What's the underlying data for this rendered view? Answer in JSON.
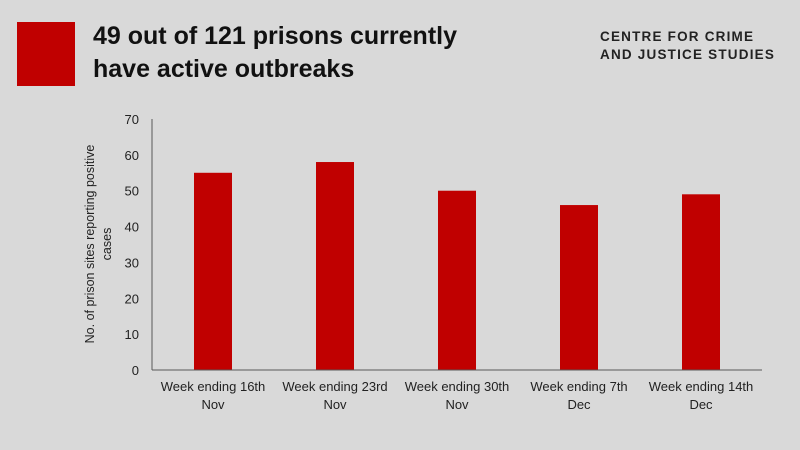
{
  "header": {
    "title_line1": "49 out of 121 prisons currently",
    "title_line2": "have active outbreaks",
    "brand_line1": "CENTRE FOR CRIME",
    "brand_line2": "AND JUSTICE STUDIES",
    "accent_color": "#c00000"
  },
  "chart_data": {
    "type": "bar",
    "title": "49 out of 121 prisons currently have active outbreaks",
    "categories": [
      [
        "Week ending 16th",
        "Nov"
      ],
      [
        "Week ending 23rd",
        "Nov"
      ],
      [
        "Week ending 30th",
        "Nov"
      ],
      [
        "Week ending 7th",
        "Dec"
      ],
      [
        "Week ending 14th",
        "Dec"
      ]
    ],
    "values": [
      55,
      58,
      50,
      46,
      49
    ],
    "ylabel_line1": "No. of prison sites reporting positive",
    "ylabel_line2": "cases",
    "xlabel": "",
    "ylim": [
      0,
      70
    ],
    "yticks": [
      0,
      10,
      20,
      30,
      40,
      50,
      60,
      70
    ],
    "bar_color": "#c00000",
    "grid": false,
    "legend": "none"
  }
}
